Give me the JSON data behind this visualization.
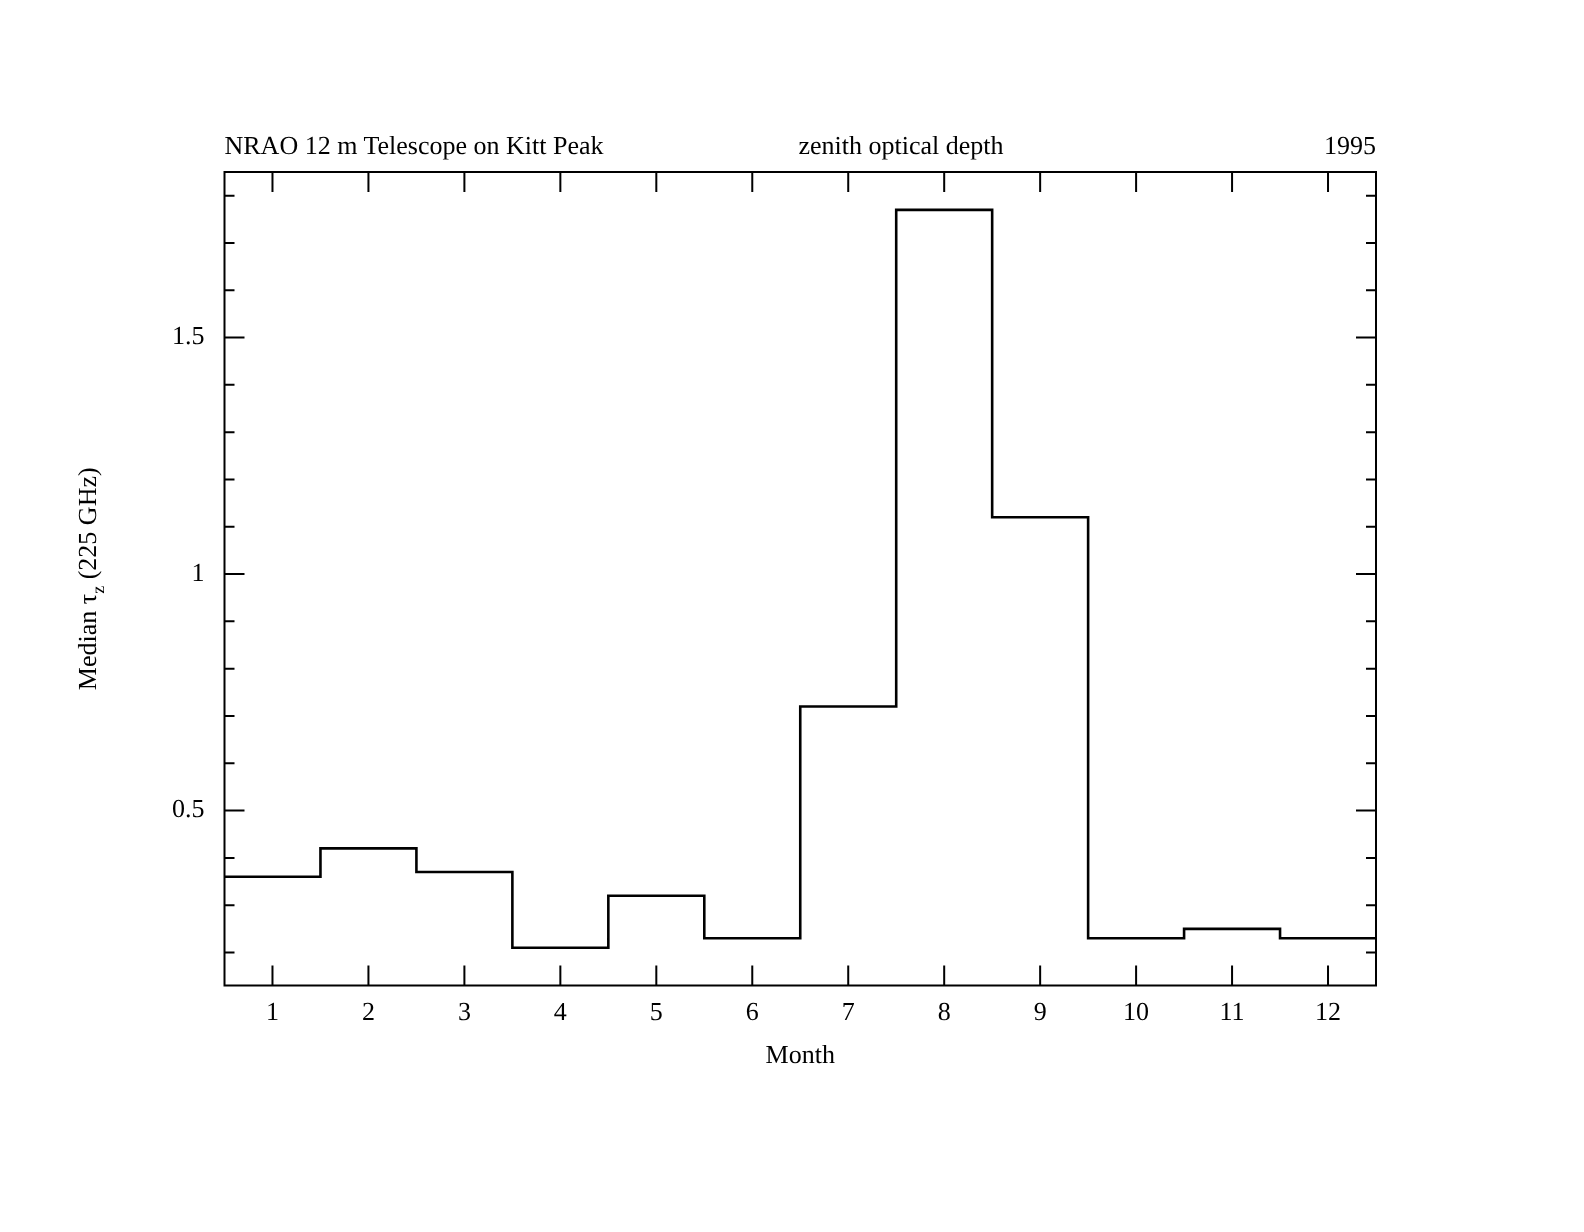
{
  "chart_data": {
    "type": "histogram",
    "title": "NRAO 12 m Telescope on Kitt Peak",
    "subtitle": "zenith optical depth",
    "annotations": [
      "1995"
    ],
    "xlabel": "Month",
    "ylabel": "Median τ$_{z}$ (225 GHz)",
    "bins": [
      0.5,
      1.5,
      2.5,
      3.5,
      4.5,
      5.5,
      6.5,
      7.5,
      8.5,
      9.5,
      10.5,
      11.5,
      12.5
    ],
    "values": [
      0.36,
      0.42,
      0.37,
      0.21,
      0.32,
      0.23,
      0.72,
      1.77,
      1.12,
      0.23,
      0.25,
      0.23
    ],
    "color": "#000000",
    "xlim": [
      0.5,
      12.5
    ],
    "xticks": [
      1,
      2,
      3,
      4,
      5,
      6,
      7,
      8,
      9,
      10,
      11,
      12
    ],
    "ylim": [
      0.13,
      1.85
    ],
    "yticks": [
      {
        "value": 0.2,
        "label": null
      },
      {
        "value": 0.3,
        "label": null
      },
      {
        "value": 0.4,
        "label": null
      },
      0.5,
      {
        "value": 0.6,
        "label": null
      },
      {
        "value": 0.7,
        "label": null
      },
      {
        "value": 0.8,
        "label": null
      },
      {
        "value": 0.9,
        "label": null
      },
      1,
      {
        "value": 1.1,
        "label": null
      },
      {
        "value": 1.2,
        "label": null
      },
      {
        "value": 1.3,
        "label": null
      },
      {
        "value": 1.4,
        "label": null
      },
      1.5,
      {
        "value": 1.6,
        "label": null
      },
      {
        "value": 1.7,
        "label": null
      },
      {
        "value": 1.8,
        "label": null
      }
    ],
    "grid": false,
    "legend": false
  }
}
